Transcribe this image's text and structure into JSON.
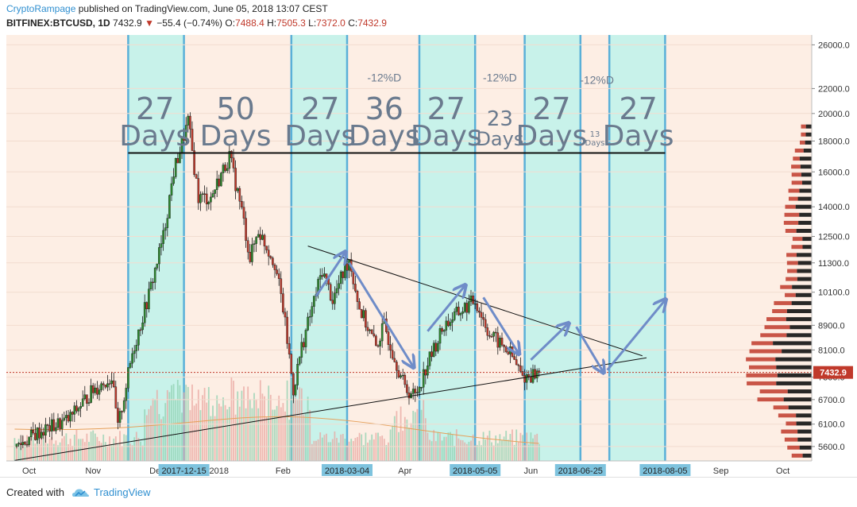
{
  "header": {
    "author": "CryptoRampage",
    "published_text": "published on TradingView.com, June 05, 2018 13:07 CEST",
    "symbol": "BITFINEX:BTCUSD, 1D",
    "last": "7432.9",
    "change": "−55.4 (−0.74%)",
    "o_label": "O:",
    "o": "7488.4",
    "h_label": "H:",
    "h": "7505.3",
    "l_label": "L:",
    "l": "7372.0",
    "c_label": "C:",
    "c": "7432.9"
  },
  "footer": {
    "created": "Created with",
    "brand": "TradingView"
  },
  "colors": {
    "background": "#fdeee4",
    "cycle_fill": "#c8f2ea",
    "cycle_border": "#5ab0d8",
    "up": "#2e8b2e",
    "down": "#c0392b",
    "annotation": "#6a7a8e",
    "arrow": "#6f8cc8",
    "price_tag": "#c0392b",
    "date_tag": "#7ec3de"
  },
  "chart_data": {
    "type": "candlestick",
    "title": "BITFINEX:BTCUSD, 1D",
    "y_scale": "log",
    "ylim": [
      5300,
      27000
    ],
    "xlim": [
      "2017-09-20",
      "2018-10-15"
    ],
    "y_ticks": [
      "26000.0",
      "22000.0",
      "20000.0",
      "18000.0",
      "16000.0",
      "14000.0",
      "12500.0",
      "11300.0",
      "10100.0",
      "8900.0",
      "8100.0",
      "7300.0",
      "6700.0",
      "6100.0",
      "5600.0"
    ],
    "current_price": "7432.9",
    "x_ticks": [
      {
        "label": "Oct",
        "date": "2017-10-01"
      },
      {
        "label": "Nov",
        "date": "2017-11-01"
      },
      {
        "label": "De",
        "date": "2017-12-01"
      },
      {
        "label": "2018",
        "date": "2018-01-01"
      },
      {
        "label": "Feb",
        "date": "2018-02-01"
      },
      {
        "label": "Apr",
        "date": "2018-04-01"
      },
      {
        "label": "Jun",
        "date": "2018-06-01"
      },
      {
        "label": "Sep",
        "date": "2018-09-01"
      },
      {
        "label": "Oct",
        "date": "2018-10-01"
      }
    ],
    "date_tags": [
      {
        "label": "2017-12-15",
        "date": "2017-12-15"
      },
      {
        "label": "2018-03-04",
        "date": "2018-03-04"
      },
      {
        "label": "2018-05-05",
        "date": "2018-05-05"
      },
      {
        "label": "2018-06-25",
        "date": "2018-06-25"
      },
      {
        "label": "2018-08-05",
        "date": "2018-08-05"
      }
    ],
    "cycle_zones": [
      {
        "start": "2017-11-18",
        "end": "2017-12-15"
      },
      {
        "start": "2018-02-05",
        "end": "2018-03-04"
      },
      {
        "start": "2018-04-08",
        "end": "2018-05-05"
      },
      {
        "start": "2018-05-29",
        "end": "2018-06-25"
      },
      {
        "start": "2018-07-09",
        "end": "2018-08-05"
      }
    ],
    "cycle_labels": [
      {
        "num": "27",
        "word": "Days",
        "date": "2017-12-01",
        "size": "big"
      },
      {
        "num": "50",
        "word": "Days",
        "date": "2018-01-09",
        "size": "big"
      },
      {
        "num": "27",
        "word": "Days",
        "date": "2018-02-19",
        "size": "big"
      },
      {
        "num": "36",
        "word": "Days",
        "date": "2018-03-22",
        "size": "big"
      },
      {
        "num": "27",
        "word": "Days",
        "date": "2018-04-21",
        "size": "big"
      },
      {
        "num": "23",
        "word": "Days",
        "date": "2018-05-17",
        "size": "mid"
      },
      {
        "num": "27",
        "word": "Days",
        "date": "2018-06-11",
        "size": "big"
      },
      {
        "num": "13",
        "word": "Days",
        "date": "2018-07-02",
        "size": "small"
      },
      {
        "num": "27",
        "word": "Days",
        "date": "2018-07-23",
        "size": "big"
      }
    ],
    "pct_labels": [
      {
        "text": "-12%D",
        "date": "2018-03-22",
        "price": 22600
      },
      {
        "text": "-12%D",
        "date": "2018-05-17",
        "price": 22600
      },
      {
        "text": "-12%D",
        "date": "2018-07-03",
        "price": 22400
      }
    ],
    "horizontal_line": {
      "price": 17200,
      "from": "2017-11-18",
      "to": "2018-08-05"
    },
    "trendlines": [
      {
        "from_date": "2018-02-13",
        "from_price": 12050,
        "to_date": "2018-07-25",
        "to_price": 7920
      },
      {
        "from_date": "2017-09-24",
        "from_price": 5310,
        "to_date": "2018-07-27",
        "to_price": 7860
      }
    ],
    "arrows": [
      {
        "from_date": "2018-02-17",
        "from_price": 9950,
        "to_date": "2018-03-03",
        "to_price": 11750
      },
      {
        "from_date": "2018-03-05",
        "from_price": 11300,
        "to_date": "2018-04-05",
        "to_price": 7600
      },
      {
        "from_date": "2018-04-12",
        "from_price": 8700,
        "to_date": "2018-04-30",
        "to_price": 10350
      },
      {
        "from_date": "2018-05-09",
        "from_price": 9900,
        "to_date": "2018-05-26",
        "to_price": 8000
      },
      {
        "from_date": "2018-06-01",
        "from_price": 7800,
        "to_date": "2018-06-19",
        "to_price": 8950
      },
      {
        "from_date": "2018-06-23",
        "from_price": 8850,
        "to_date": "2018-07-06",
        "to_price": 7450
      },
      {
        "from_date": "2018-07-08",
        "from_price": 7500,
        "to_date": "2018-08-05",
        "to_price": 9800
      }
    ],
    "price_path": [
      [
        "2017-09-25",
        5600
      ],
      [
        "2017-10-05",
        5900
      ],
      [
        "2017-10-20",
        6200
      ],
      [
        "2017-11-01",
        6950
      ],
      [
        "2017-11-10",
        7300
      ],
      [
        "2017-11-13",
        6000
      ],
      [
        "2017-11-20",
        8000
      ],
      [
        "2017-11-28",
        10000
      ],
      [
        "2017-12-05",
        12500
      ],
      [
        "2017-12-10",
        16000
      ],
      [
        "2017-12-17",
        19400
      ],
      [
        "2017-12-22",
        14500
      ],
      [
        "2017-12-28",
        14500
      ],
      [
        "2018-01-06",
        17000
      ],
      [
        "2018-01-12",
        13800
      ],
      [
        "2018-01-16",
        11500
      ],
      [
        "2018-01-20",
        12800
      ],
      [
        "2018-01-28",
        11300
      ],
      [
        "2018-02-01",
        9500
      ],
      [
        "2018-02-06",
        6950
      ],
      [
        "2018-02-10",
        8200
      ],
      [
        "2018-02-20",
        11000
      ],
      [
        "2018-02-25",
        9800
      ],
      [
        "2018-03-05",
        11500
      ],
      [
        "2018-03-10",
        9500
      ],
      [
        "2018-03-18",
        8200
      ],
      [
        "2018-03-22",
        8900
      ],
      [
        "2018-04-01",
        7000
      ],
      [
        "2018-04-06",
        6800
      ],
      [
        "2018-04-12",
        7700
      ],
      [
        "2018-04-20",
        8900
      ],
      [
        "2018-04-28",
        9400
      ],
      [
        "2018-05-05",
        9800
      ],
      [
        "2018-05-12",
        8600
      ],
      [
        "2018-05-22",
        8000
      ],
      [
        "2018-05-28",
        7300
      ],
      [
        "2018-06-05",
        7432.9
      ]
    ],
    "volume_profile": "horizontal volume-by-price histogram on right edge, red/black split, densest near 8100"
  }
}
